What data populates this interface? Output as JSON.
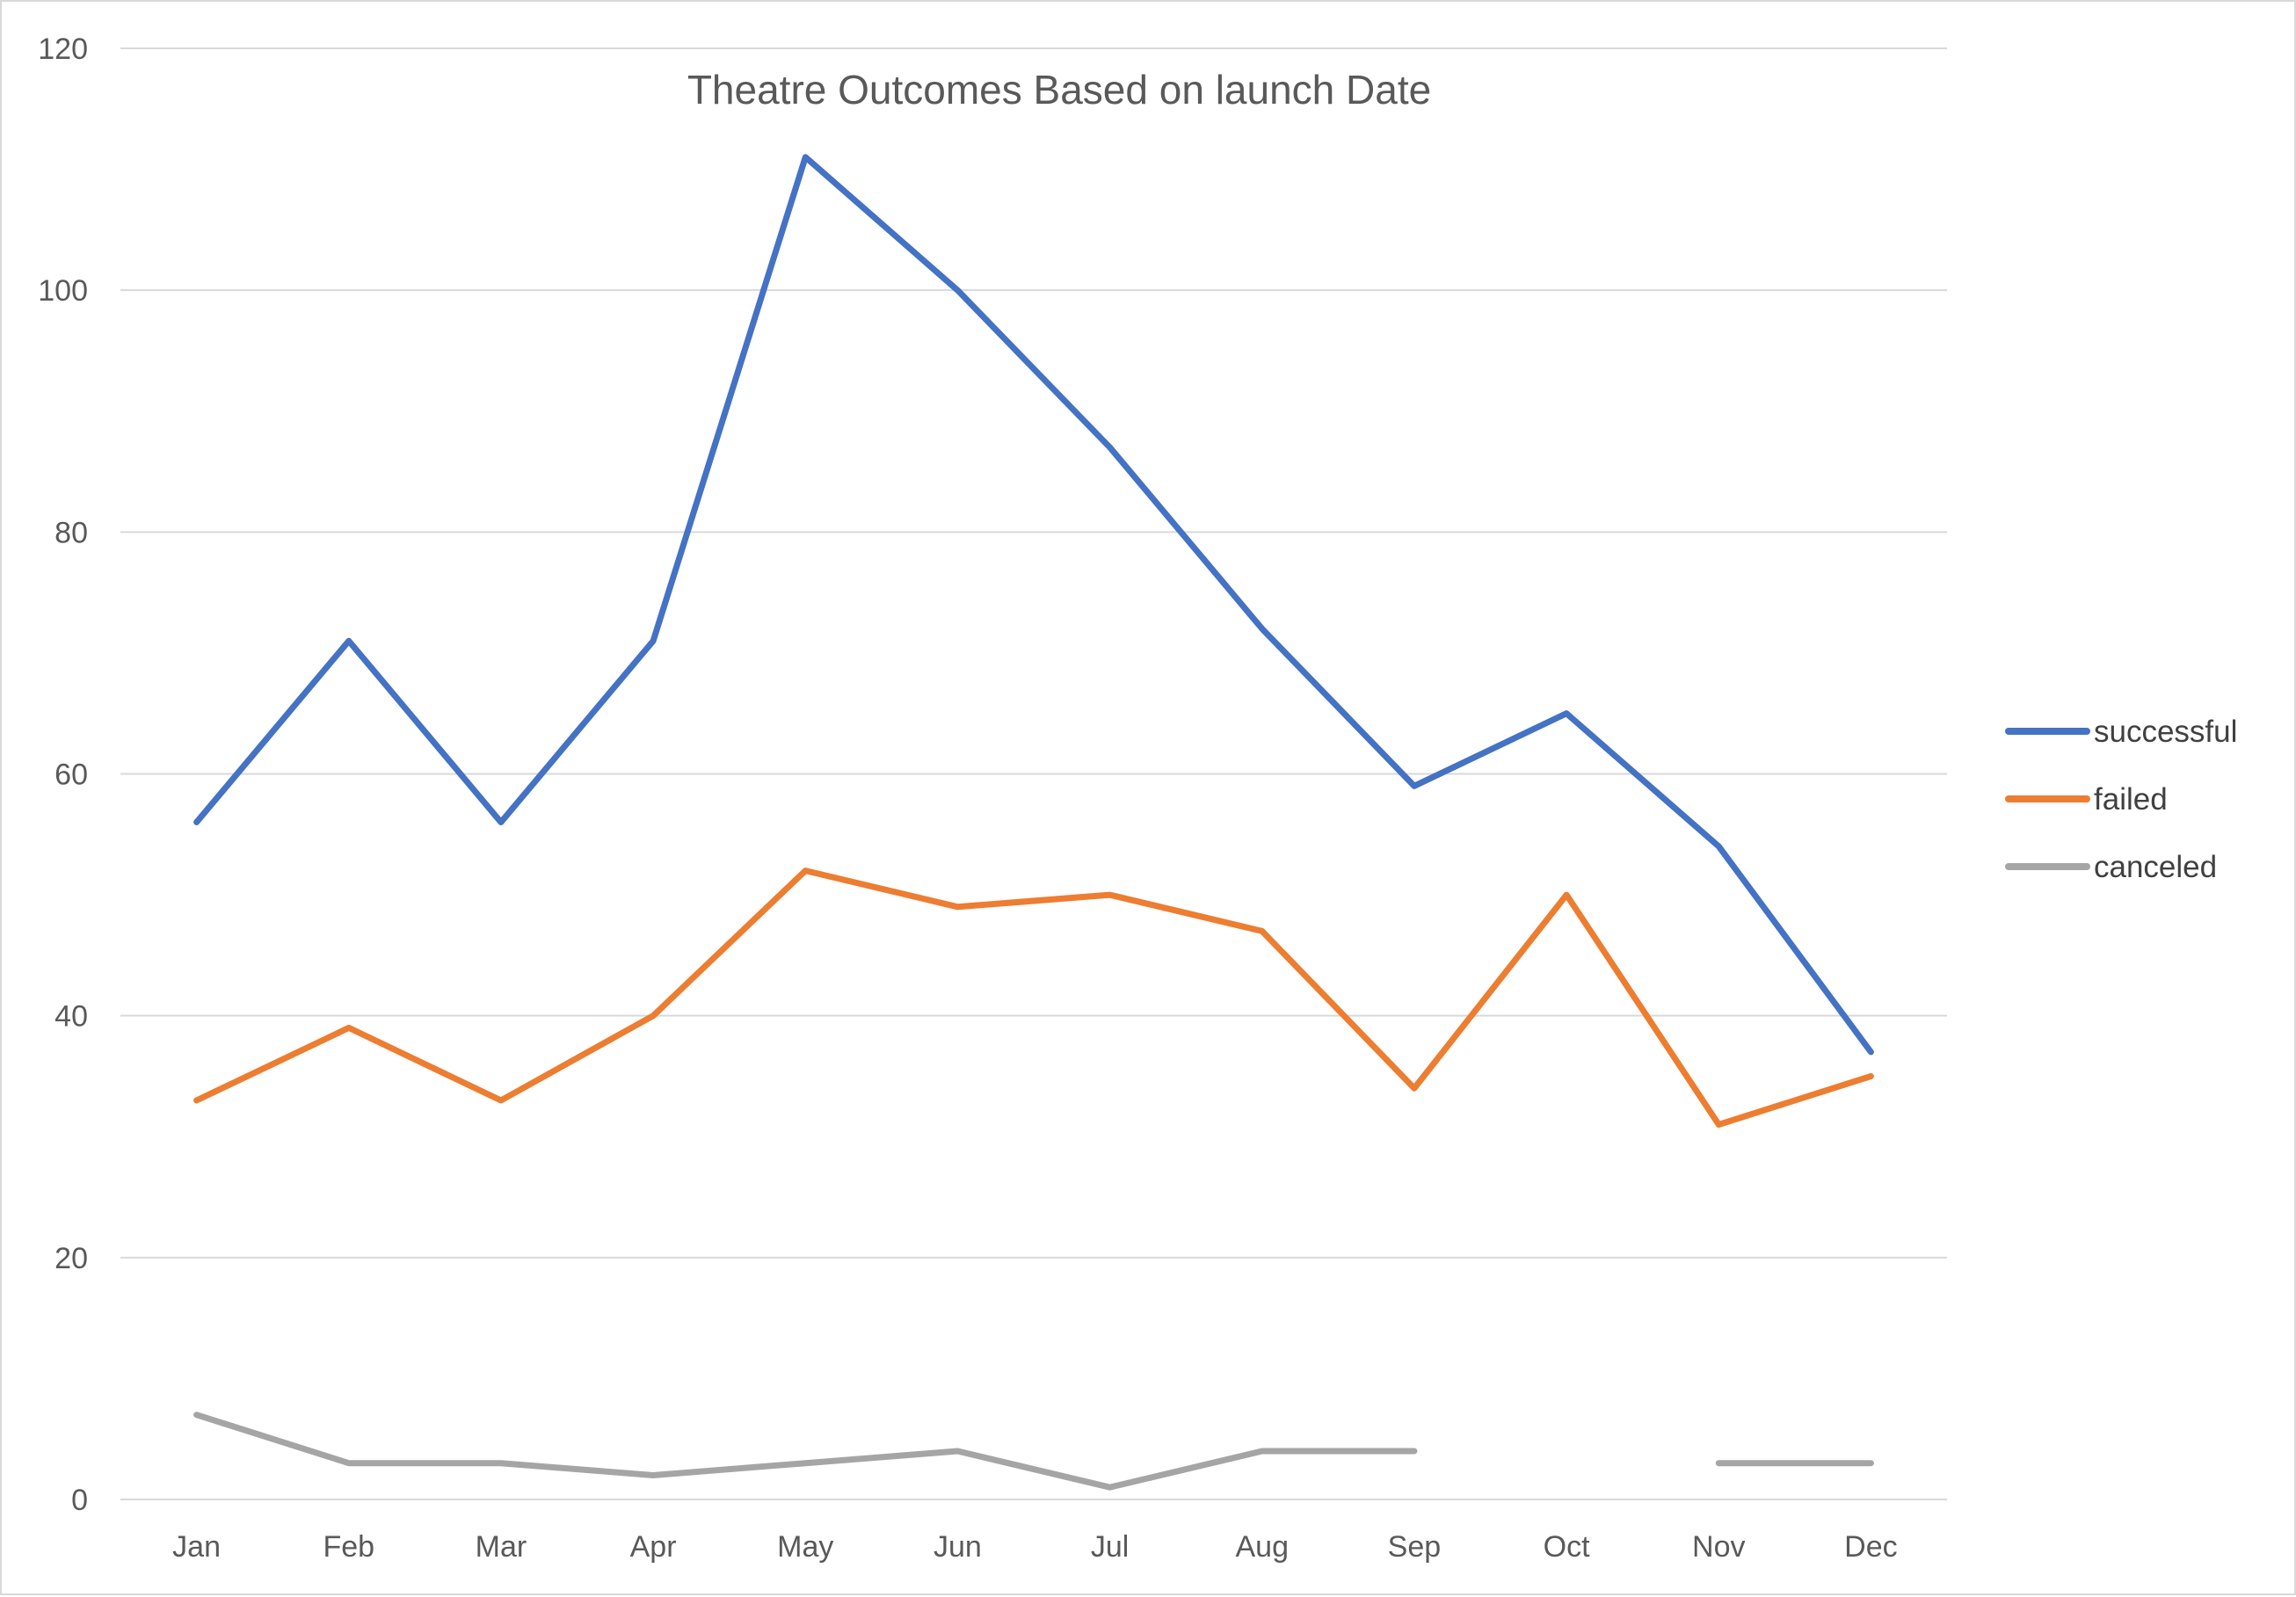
{
  "chart_data": {
    "type": "line",
    "title": "Theatre Outcomes Based on launch Date",
    "xlabel": "",
    "ylabel": "",
    "categories": [
      "Jan",
      "Feb",
      "Mar",
      "Apr",
      "May",
      "Jun",
      "Jul",
      "Aug",
      "Sep",
      "Oct",
      "Nov",
      "Dec"
    ],
    "ylim": [
      0,
      120
    ],
    "yticks": [
      0,
      20,
      40,
      60,
      80,
      100,
      120
    ],
    "grid": true,
    "legend_position": "right",
    "series": [
      {
        "name": "successful",
        "color": "#4472C4",
        "values": [
          56,
          71,
          56,
          71,
          111,
          100,
          87,
          72,
          59,
          65,
          54,
          37
        ]
      },
      {
        "name": "failed",
        "color": "#ED7D31",
        "values": [
          33,
          39,
          33,
          40,
          52,
          49,
          50,
          47,
          34,
          50,
          31,
          35
        ]
      },
      {
        "name": "canceled",
        "color": "#A5A5A5",
        "values": [
          7,
          3,
          3,
          2,
          3,
          4,
          1,
          4,
          4,
          null,
          3,
          3
        ]
      }
    ]
  }
}
